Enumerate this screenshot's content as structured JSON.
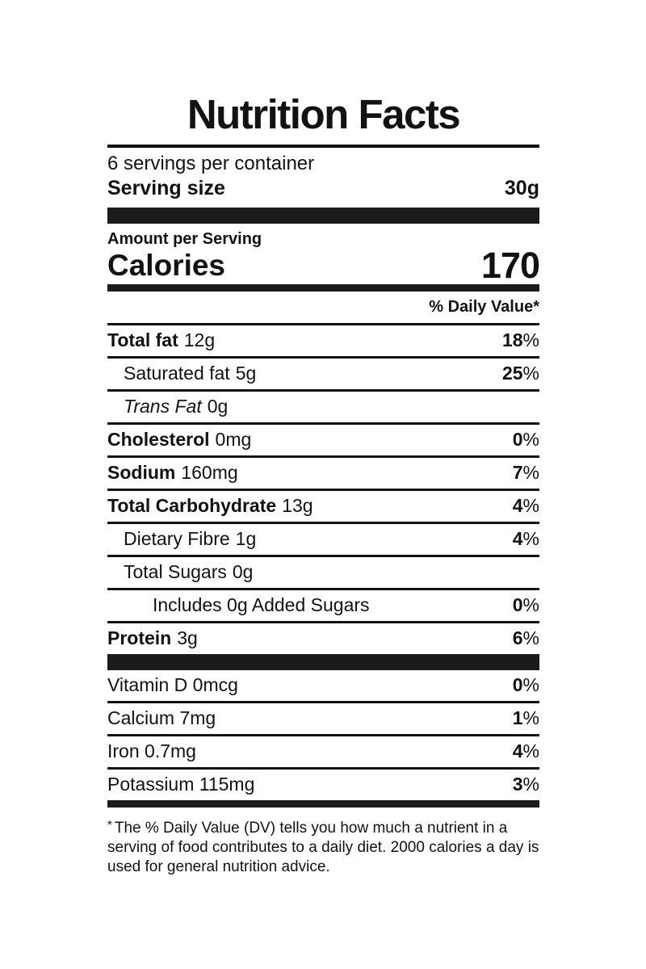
{
  "label": {
    "title": "Nutrition Facts",
    "servings_per_container": "6 servings per container",
    "serving_size_label": "Serving size",
    "serving_size_value": "30g",
    "amount_per_serving": "Amount per Serving",
    "calories_label": "Calories",
    "calories_value": "170",
    "daily_value_header": "% Daily Value*",
    "percent_sign": "%",
    "rows": [
      {
        "name": "Total fat",
        "amount": "12g",
        "dv": "18"
      },
      {
        "name": "Saturated fat",
        "amount": "5g",
        "dv": "25"
      },
      {
        "name": "Trans Fat",
        "amount": "0g",
        "dv": ""
      },
      {
        "name": "Cholesterol",
        "amount": "0mg",
        "dv": "0"
      },
      {
        "name": "Sodium",
        "amount": "160mg",
        "dv": "7"
      },
      {
        "name": "Total Carbohydrate",
        "amount": "13g",
        "dv": "4"
      },
      {
        "name": "Dietary Fibre",
        "amount": "1g",
        "dv": "4"
      },
      {
        "name": "Total Sugars",
        "amount": "0g",
        "dv": ""
      },
      {
        "name": "Includes 0g Added Sugars",
        "amount": "",
        "dv": "0"
      },
      {
        "name": "Protein",
        "amount": "3g",
        "dv": "6"
      }
    ],
    "vitamins": [
      {
        "name": "Vitamin D 0mcg",
        "dv": "0"
      },
      {
        "name": "Calcium 7mg",
        "dv": "1"
      },
      {
        "name": "Iron 0.7mg",
        "dv": "4"
      },
      {
        "name": "Potassium 115mg",
        "dv": "3"
      }
    ],
    "footnote_marker": "*",
    "footnote_text": "The % Daily Value (DV) tells you how much a nutrient in a serving of food contributes to a daily diet. 2000 calories a day is used for general nutrition advice."
  },
  "colors": {
    "ink": "#121212",
    "bar": "#1b1b1b",
    "background": "#ffffff"
  }
}
